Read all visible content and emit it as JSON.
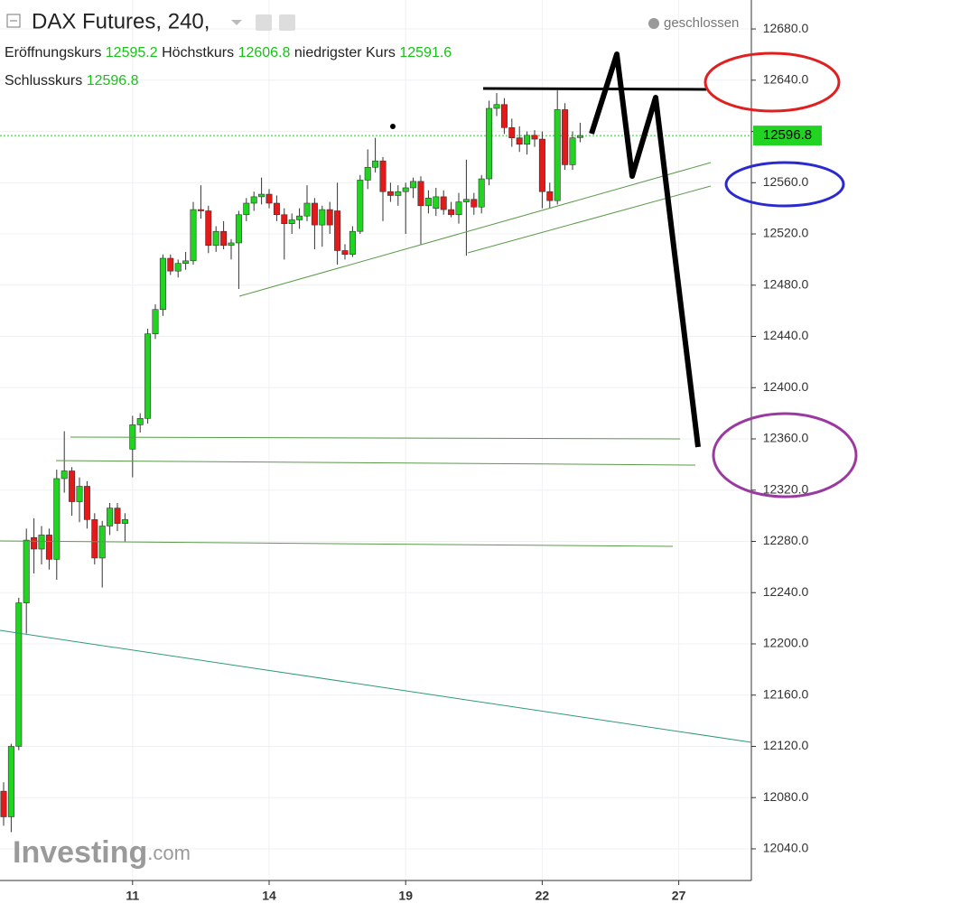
{
  "chart_data": {
    "type": "candlestick",
    "title": "DAX Futures, 240,",
    "status": "geschlossen",
    "open_label": "Eröffnungskurs",
    "high_label": "Höchstkurs",
    "low_label": "niedrigster Kurs",
    "close_label": "Schlusskurs",
    "watermark": "Investing",
    "watermark_suffix": ".com",
    "up_color": "#22d422",
    "down_color": "#e41a1a",
    "grid": true,
    "ylim": [
      12015.3,
      12702.6
    ],
    "yticks": [
      {
        "value": 12040,
        "label": "12040.0"
      },
      {
        "value": 12080,
        "label": "12080.0"
      },
      {
        "value": 12120,
        "label": "12120.0"
      },
      {
        "value": 12160,
        "label": "12160.0"
      },
      {
        "value": 12200,
        "label": "12200.0"
      },
      {
        "value": 12240,
        "label": "12240.0"
      },
      {
        "value": 12280,
        "label": "12280.0"
      },
      {
        "value": 12320,
        "label": "12320.0"
      },
      {
        "value": 12360,
        "label": "12360.0"
      },
      {
        "value": 12400,
        "label": "12400.0"
      },
      {
        "value": 12440,
        "label": "12440.0"
      },
      {
        "value": 12480,
        "label": "12480.0"
      },
      {
        "value": 12520,
        "label": "12520.0"
      },
      {
        "value": 12560,
        "label": "12560.0"
      },
      {
        "value": 12600,
        "label": "12600.0"
      },
      {
        "value": 12640,
        "label": "12640.0"
      },
      {
        "value": 12680,
        "label": "12680.0"
      }
    ],
    "categories": [
      null,
      null,
      null,
      null,
      null,
      null,
      null,
      null,
      null,
      null,
      null,
      null,
      null,
      null,
      null,
      null,
      null,
      "11",
      null,
      null,
      null,
      null,
      null,
      null,
      null,
      null,
      null,
      null,
      null,
      null,
      null,
      null,
      null,
      null,
      null,
      "14",
      null,
      null,
      null,
      null,
      null,
      null,
      null,
      null,
      null,
      null,
      null,
      null,
      null,
      null,
      null,
      null,
      null,
      "19",
      null,
      null,
      null,
      null,
      null,
      null,
      null,
      null,
      null,
      null,
      null,
      null,
      null,
      null,
      null,
      null,
      null,
      "22",
      null,
      null,
      null,
      null,
      null,
      null,
      null,
      null,
      null,
      null,
      null,
      null,
      null,
      null,
      null,
      null,
      null,
      "27",
      null,
      null,
      null,
      null,
      null,
      null,
      null,
      null
    ],
    "open": [
      12085,
      12065,
      12120,
      12232,
      12283,
      12274,
      12285,
      12266,
      12329,
      12335,
      12311,
      12323,
      12297,
      12267,
      12292,
      12306,
      12294,
      12352,
      12371,
      12376,
      12442,
      12461,
      12501,
      12491,
      12497,
      12499,
      12539,
      12538,
      12511,
      12522,
      12511,
      12513,
      12535,
      12544,
      12549,
      12551,
      12544,
      12535,
      12528,
      12531,
      12534,
      12544,
      12527,
      12539,
      12538,
      12507,
      12504,
      12522,
      12562,
      12572,
      12577,
      12553,
      12550,
      12553,
      12556,
      12561,
      12542,
      12540,
      12549,
      12539,
      12535,
      12545,
      12547,
      12541,
      12563,
      12618,
      12621,
      12603,
      12595,
      12590,
      12597,
      12594,
      12553,
      12546,
      12617,
      12574,
      12595.2,
      null,
      null,
      null,
      null,
      null,
      null,
      null,
      null,
      null,
      null,
      null,
      null,
      null,
      null,
      null,
      null,
      null,
      null,
      null,
      null,
      null
    ],
    "high": [
      12092,
      12122,
      12236,
      12290,
      12298,
      12292,
      12290,
      12336,
      12366,
      12338,
      12330,
      12327,
      12302,
      12296,
      12310,
      12310,
      12302,
      12378,
      12380,
      12446,
      12465,
      12504,
      12504,
      12500,
      12506,
      12545,
      12558,
      12542,
      12526,
      12530,
      12516,
      12538,
      12548,
      12553,
      12564,
      12555,
      12550,
      12540,
      12536,
      12540,
      12558,
      12548,
      12542,
      12545,
      12560,
      12512,
      12526,
      12566,
      12586,
      12595,
      12580,
      12560,
      12558,
      12560,
      12564,
      12565,
      12554,
      12556,
      12554,
      12545,
      12552,
      12578,
      12552,
      12566,
      12624,
      12630,
      12626,
      12610,
      12604,
      12600,
      12601,
      12600,
      12560,
      12632,
      12622,
      12600,
      12606.8,
      null,
      null,
      null,
      null,
      null,
      null,
      null,
      null,
      null,
      null,
      null,
      null,
      null,
      null,
      null,
      null,
      null,
      null,
      null,
      null,
      null
    ],
    "low": [
      12058,
      12053,
      12117,
      12208,
      12255,
      12262,
      12258,
      12250,
      12318,
      12300,
      12295,
      12290,
      12262,
      12244,
      12285,
      12288,
      12280,
      12330,
      12365,
      12372,
      12438,
      12456,
      12488,
      12486,
      12492,
      12496,
      12532,
      12505,
      12506,
      12508,
      12500,
      12477,
      12530,
      12538,
      12543,
      12540,
      12530,
      12500,
      12520,
      12524,
      12530,
      12508,
      12510,
      12520,
      12496,
      12500,
      12502,
      12520,
      12555,
      12568,
      12530,
      12545,
      12542,
      12520,
      12548,
      12512,
      12536,
      12534,
      12535,
      12533,
      12528,
      12503,
      12535,
      12536,
      12558,
      12612,
      12598,
      12588,
      12584,
      12582,
      12588,
      12540,
      12540,
      12543,
      12570,
      12570,
      12591.6,
      null,
      null,
      null,
      null,
      null,
      null,
      null,
      null,
      null,
      null,
      null,
      null,
      null,
      null,
      null,
      null,
      null,
      null,
      null,
      null,
      null
    ],
    "close": [
      12065,
      12120,
      12232,
      12281,
      12274,
      12285,
      12266,
      12329,
      12335,
      12311,
      12323,
      12297,
      12267,
      12292,
      12306,
      12294,
      12297,
      12371,
      12376,
      12442,
      12461,
      12501,
      12491,
      12497,
      12499,
      12539,
      12538,
      12511,
      12522,
      12511,
      12513,
      12535,
      12544,
      12549,
      12551,
      12544,
      12535,
      12528,
      12531,
      12534,
      12544,
      12527,
      12539,
      12527,
      12507,
      12504,
      12522,
      12562,
      12572,
      12577,
      12553,
      12550,
      12553,
      12556,
      12561,
      12542,
      12548,
      12549,
      12539,
      12535,
      12545,
      12547,
      12541,
      12563,
      12618,
      12621,
      12603,
      12595,
      12590,
      12597,
      12594,
      12553,
      12546,
      12617,
      12574,
      12595,
      12596.8,
      null,
      null,
      null,
      null,
      null,
      null,
      null,
      null,
      null,
      null,
      null,
      null,
      null,
      null,
      null,
      null,
      null,
      null,
      null,
      null,
      null
    ]
  }
}
